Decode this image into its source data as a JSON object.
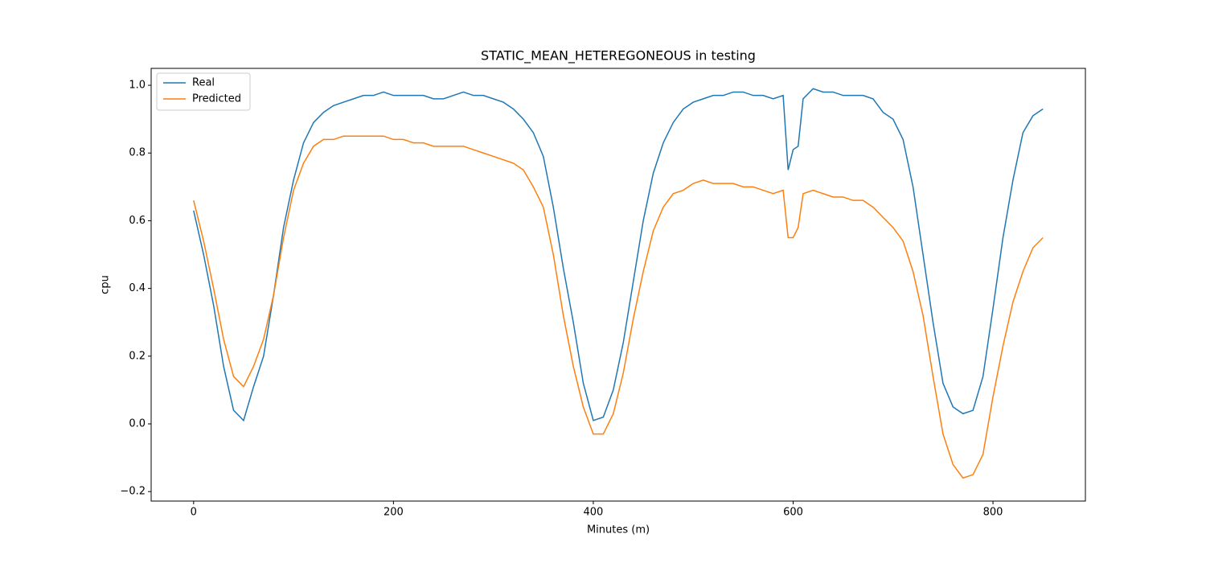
{
  "chart_data": {
    "type": "line",
    "title": "STATIC_MEAN_HETEREGONEOUS in testing",
    "x_label": "Minutes (m)",
    "y_label": "cpu",
    "x": [
      0,
      10,
      20,
      30,
      40,
      50,
      60,
      70,
      80,
      90,
      100,
      110,
      120,
      130,
      140,
      150,
      160,
      170,
      180,
      190,
      200,
      210,
      220,
      230,
      240,
      250,
      260,
      270,
      280,
      290,
      300,
      310,
      320,
      330,
      340,
      350,
      360,
      370,
      380,
      390,
      400,
      410,
      420,
      430,
      440,
      450,
      460,
      470,
      480,
      490,
      500,
      510,
      520,
      530,
      540,
      550,
      560,
      570,
      580,
      590,
      595,
      600,
      605,
      610,
      620,
      630,
      640,
      650,
      660,
      670,
      680,
      690,
      700,
      710,
      720,
      730,
      740,
      750,
      760,
      770,
      780,
      790,
      800,
      810,
      820,
      830,
      840,
      850
    ],
    "series": [
      {
        "name": "Real",
        "color": "#1f77b4",
        "values": [
          0.63,
          0.5,
          0.35,
          0.17,
          0.04,
          0.01,
          0.11,
          0.2,
          0.38,
          0.58,
          0.72,
          0.83,
          0.89,
          0.92,
          0.94,
          0.95,
          0.96,
          0.97,
          0.97,
          0.98,
          0.97,
          0.97,
          0.97,
          0.97,
          0.96,
          0.96,
          0.97,
          0.98,
          0.97,
          0.97,
          0.96,
          0.95,
          0.93,
          0.9,
          0.86,
          0.79,
          0.64,
          0.46,
          0.3,
          0.12,
          0.01,
          0.02,
          0.1,
          0.24,
          0.42,
          0.6,
          0.74,
          0.83,
          0.89,
          0.93,
          0.95,
          0.96,
          0.97,
          0.97,
          0.98,
          0.98,
          0.97,
          0.97,
          0.96,
          0.97,
          0.75,
          0.81,
          0.82,
          0.96,
          0.99,
          0.98,
          0.98,
          0.97,
          0.97,
          0.97,
          0.96,
          0.92,
          0.9,
          0.84,
          0.7,
          0.5,
          0.3,
          0.12,
          0.05,
          0.03,
          0.04,
          0.14,
          0.34,
          0.55,
          0.72,
          0.86,
          0.91,
          0.93
        ]
      },
      {
        "name": "Predicted",
        "color": "#ff7f0e",
        "values": [
          0.66,
          0.54,
          0.4,
          0.25,
          0.14,
          0.11,
          0.17,
          0.25,
          0.38,
          0.55,
          0.69,
          0.77,
          0.82,
          0.84,
          0.84,
          0.85,
          0.85,
          0.85,
          0.85,
          0.85,
          0.84,
          0.84,
          0.83,
          0.83,
          0.82,
          0.82,
          0.82,
          0.82,
          0.81,
          0.8,
          0.79,
          0.78,
          0.77,
          0.75,
          0.7,
          0.64,
          0.5,
          0.32,
          0.17,
          0.05,
          -0.03,
          -0.03,
          0.03,
          0.15,
          0.31,
          0.45,
          0.57,
          0.64,
          0.68,
          0.69,
          0.71,
          0.72,
          0.71,
          0.71,
          0.71,
          0.7,
          0.7,
          0.69,
          0.68,
          0.69,
          0.55,
          0.55,
          0.58,
          0.68,
          0.69,
          0.68,
          0.67,
          0.67,
          0.66,
          0.66,
          0.64,
          0.61,
          0.58,
          0.54,
          0.45,
          0.32,
          0.14,
          -0.03,
          -0.12,
          -0.16,
          -0.15,
          -0.09,
          0.08,
          0.23,
          0.36,
          0.45,
          0.52,
          0.55
        ]
      }
    ],
    "xlim": [
      -42.5,
      892.5
    ],
    "xticks": [
      0,
      200,
      400,
      600,
      800
    ],
    "ylim": [
      -0.228,
      1.05
    ],
    "yticks": [
      {
        "value": -0.2,
        "label": "−0.2"
      },
      {
        "value": 0,
        "label": "0.0"
      },
      0.2,
      0.4,
      0.6,
      0.8,
      {
        "value": 1,
        "label": "1.0"
      }
    ],
    "legend": "upper left"
  }
}
